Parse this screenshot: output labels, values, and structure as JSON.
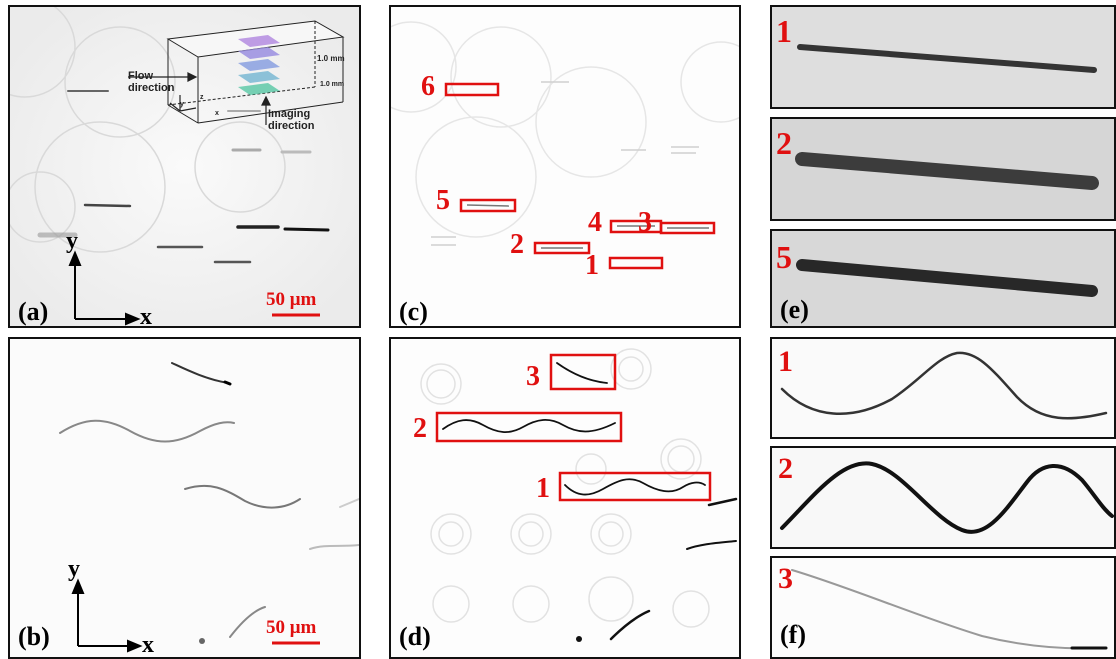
{
  "panels": {
    "a": {
      "label": "(a)",
      "scale_bar": "50 μm",
      "axis_x": "x",
      "axis_y": "y",
      "inset": {
        "flow": "Flow\ndirection",
        "imaging": "Imaging\ndirection",
        "dim_height": "1.0 mm",
        "dim_depth": "1.0 mm",
        "ax_x": "x",
        "ax_y": "y",
        "ax_z": "z"
      }
    },
    "b": {
      "label": "(b)",
      "scale_bar": "50 μm",
      "axis_x": "x",
      "axis_y": "y"
    },
    "c": {
      "label": "(c)",
      "boxes": [
        "6",
        "5",
        "4",
        "3",
        "2",
        "1"
      ]
    },
    "d": {
      "label": "(d)",
      "boxes": [
        "3",
        "2",
        "1"
      ]
    },
    "e": {
      "label": "(e)",
      "tiles": [
        "1",
        "2",
        "5"
      ]
    },
    "f": {
      "label": "(f)",
      "tiles": [
        "1",
        "2",
        "3"
      ]
    }
  },
  "colors": {
    "highlight": "#e01010",
    "frame": "#111111"
  }
}
